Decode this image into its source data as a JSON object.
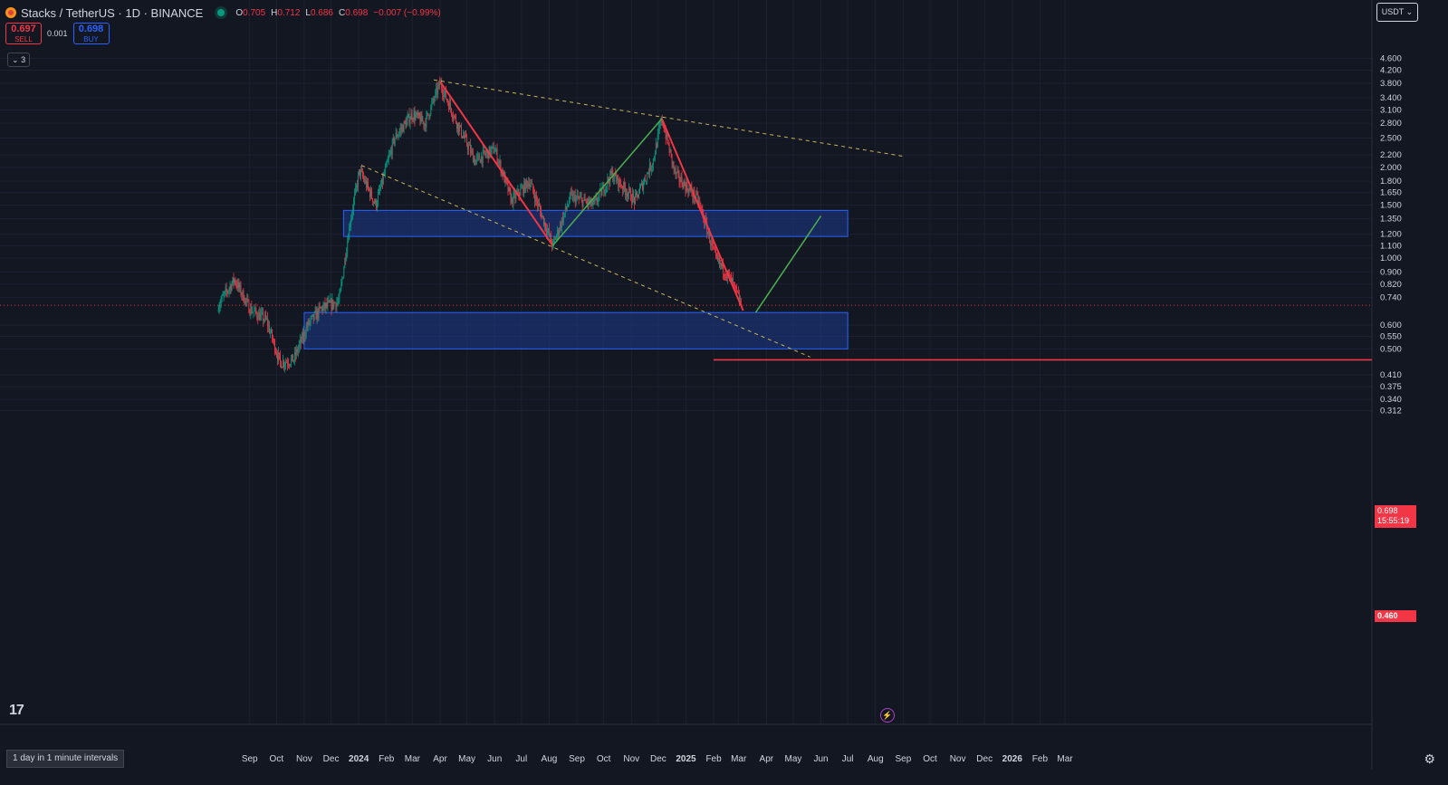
{
  "header": {
    "title": "Stacks / TetherUS · 1D · BINANCE",
    "ohlc": [
      {
        "k": "O",
        "v": "0.705"
      },
      {
        "k": "H",
        "v": "0.712"
      },
      {
        "k": "L",
        "v": "0.686"
      },
      {
        "k": "C",
        "v": "0.698"
      },
      {
        "k": "",
        "v": "−0.007 (−0.99%)"
      }
    ],
    "sell_price": "0.697",
    "sell_label": "SELL",
    "buy_price": "0.698",
    "buy_label": "BUY",
    "spread": "0.001",
    "indicators_count": "3"
  },
  "currency_label": "USDT",
  "interval_label": "1 day in 1 minute intervals",
  "price_badge": {
    "price": "0.698",
    "countdown": "15:55:19"
  },
  "level_badge": "0.460",
  "colors": {
    "background": "#131722",
    "up": "#089981",
    "down": "#f23645",
    "zone_fill": "#1e3a8a",
    "zone_border": "#2962ff",
    "trendline": "#c9b458",
    "down_leg": "#f23645",
    "up_leg": "#4caf50"
  },
  "chart_data": {
    "type": "candlestick",
    "symbol": "Stacks / TetherUS",
    "exchange": "BINANCE",
    "timeframe": "1D",
    "y_scale": "log",
    "y_ticks": [
      4.6,
      4.2,
      3.8,
      3.4,
      3.1,
      2.8,
      2.5,
      2.2,
      2.0,
      1.8,
      1.65,
      1.5,
      1.35,
      1.2,
      1.1,
      1.0,
      0.9,
      0.82,
      0.74,
      0.6,
      0.55,
      0.5,
      0.41,
      0.375,
      0.34,
      0.312
    ],
    "y_tick_labels": [
      "4.600",
      "4.200",
      "3.800",
      "3.400",
      "3.100",
      "2.800",
      "2.500",
      "2.200",
      "2.000",
      "1.800",
      "1.650",
      "1.500",
      "1.350",
      "1.200",
      "1.100",
      "1.000",
      "0.900",
      "0.820",
      "0.740",
      "0.600",
      "0.550",
      "0.500",
      "0.410",
      "0.375",
      "0.340",
      "0.312"
    ],
    "x_tick_labels": [
      "Sep",
      "Oct",
      "Nov",
      "Dec",
      "2024",
      "Feb",
      "Mar",
      "Apr",
      "May",
      "Jun",
      "Jul",
      "Aug",
      "Sep",
      "Oct",
      "Nov",
      "Dec",
      "2025",
      "Feb",
      "Mar",
      "Apr",
      "May",
      "Jun",
      "Jul",
      "Aug",
      "Sep",
      "Oct",
      "Nov",
      "Dec",
      "2026",
      "Feb",
      "Mar"
    ],
    "price_path": [
      {
        "t": "2023-07-28",
        "p": 0.7
      },
      {
        "t": "2023-08-15",
        "p": 0.85
      },
      {
        "t": "2023-09-01",
        "p": 0.68
      },
      {
        "t": "2023-09-20",
        "p": 0.62
      },
      {
        "t": "2023-10-05",
        "p": 0.45
      },
      {
        "t": "2023-10-20",
        "p": 0.46
      },
      {
        "t": "2023-11-05",
        "p": 0.6
      },
      {
        "t": "2023-11-20",
        "p": 0.68
      },
      {
        "t": "2023-12-10",
        "p": 0.72
      },
      {
        "t": "2023-12-22",
        "p": 1.3
      },
      {
        "t": "2024-01-02",
        "p": 1.95
      },
      {
        "t": "2024-01-20",
        "p": 1.5
      },
      {
        "t": "2024-02-10",
        "p": 2.5
      },
      {
        "t": "2024-03-01",
        "p": 3.0
      },
      {
        "t": "2024-03-15",
        "p": 2.8
      },
      {
        "t": "2024-04-01",
        "p": 3.8
      },
      {
        "t": "2024-04-20",
        "p": 2.8
      },
      {
        "t": "2024-05-10",
        "p": 2.1
      },
      {
        "t": "2024-06-01",
        "p": 2.3
      },
      {
        "t": "2024-06-20",
        "p": 1.55
      },
      {
        "t": "2024-07-10",
        "p": 1.8
      },
      {
        "t": "2024-08-05",
        "p": 1.1
      },
      {
        "t": "2024-08-25",
        "p": 1.6
      },
      {
        "t": "2024-09-20",
        "p": 1.5
      },
      {
        "t": "2024-10-10",
        "p": 1.9
      },
      {
        "t": "2024-11-05",
        "p": 1.55
      },
      {
        "t": "2024-11-25",
        "p": 2.1
      },
      {
        "t": "2024-12-05",
        "p": 2.9
      },
      {
        "t": "2024-12-20",
        "p": 1.9
      },
      {
        "t": "2025-01-15",
        "p": 1.55
      },
      {
        "t": "2025-02-03",
        "p": 1.0
      },
      {
        "t": "2025-02-20",
        "p": 0.85
      },
      {
        "t": "2025-03-04",
        "p": 0.698
      }
    ],
    "last_price": 0.698,
    "drawings": {
      "zones": [
        {
          "from": "2023-12-15",
          "to": "2025-07-01",
          "low": 1.18,
          "high": 1.44
        },
        {
          "from": "2023-11-01",
          "to": "2025-07-01",
          "low": 0.5,
          "high": 0.66
        }
      ],
      "horizontal_level": {
        "from": "2025-02-01",
        "price": 0.46
      },
      "dashed_trendlines": [
        {
          "p1": {
            "t": "2024-03-25",
            "p": 3.9
          },
          "p2": {
            "t": "2025-08-31",
            "p": 2.18
          }
        },
        {
          "p1": {
            "t": "2024-01-04",
            "p": 2.03
          },
          "p2": {
            "t": "2025-05-20",
            "p": 0.47
          }
        }
      ],
      "down_legs": [
        {
          "p1": {
            "t": "2024-04-01",
            "p": 3.85
          },
          "p2": {
            "t": "2024-08-05",
            "p": 1.1
          }
        },
        {
          "p1": {
            "t": "2024-12-05",
            "p": 2.9
          },
          "p2": {
            "t": "2025-03-06",
            "p": 0.67
          }
        }
      ],
      "up_legs": [
        {
          "p1": {
            "t": "2024-08-05",
            "p": 1.1
          },
          "p2": {
            "t": "2024-12-05",
            "p": 2.9
          }
        },
        {
          "p1": {
            "t": "2025-03-20",
            "p": 0.66
          },
          "p2": {
            "t": "2025-06-01",
            "p": 1.38
          }
        }
      ]
    }
  }
}
